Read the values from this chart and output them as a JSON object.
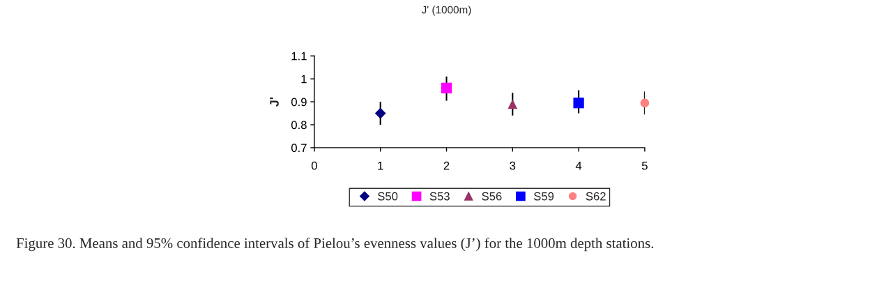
{
  "chart_data": {
    "type": "scatter",
    "title": "J' (1000m)",
    "ylabel": "J'",
    "xlim": [
      0,
      5
    ],
    "xticks": [
      0,
      1,
      2,
      3,
      4,
      5
    ],
    "ylim": [
      0.7,
      1.1
    ],
    "yticks": [
      0.7,
      0.8,
      0.9,
      1,
      1.1
    ],
    "grid": false,
    "legend": "bottom",
    "series": [
      {
        "name": "S50",
        "color": "#000080",
        "marker": "diamond",
        "x": [
          1
        ],
        "values": [
          0.85
        ],
        "errors": [
          0.05
        ]
      },
      {
        "name": "S53",
        "color": "#ff00ff",
        "marker": "square",
        "x": [
          2
        ],
        "values": [
          0.96
        ],
        "errors": [
          [
            0.905,
            1.01
          ]
        ]
      },
      {
        "name": "S56",
        "color": "#993366",
        "marker": "triangle",
        "x": [
          3
        ],
        "values": [
          0.89
        ],
        "errors": [
          [
            0.84,
            0.94
          ]
        ]
      },
      {
        "name": "S59",
        "color": "#0000ff",
        "marker": "square",
        "x": [
          4
        ],
        "values": [
          0.895
        ],
        "errors": [
          [
            0.85,
            0.95
          ]
        ]
      },
      {
        "name": "S62",
        "color": "#ff8080",
        "marker": "circle",
        "x": [
          5
        ],
        "values": [
          0.895
        ],
        "errors": [
          [
            0.845,
            0.945
          ]
        ]
      }
    ],
    "annotations": [
      "Figure 30. Means and 95% confidence intervals of Pielou’s evenness values (J’) for the 1000m depth stations."
    ]
  }
}
